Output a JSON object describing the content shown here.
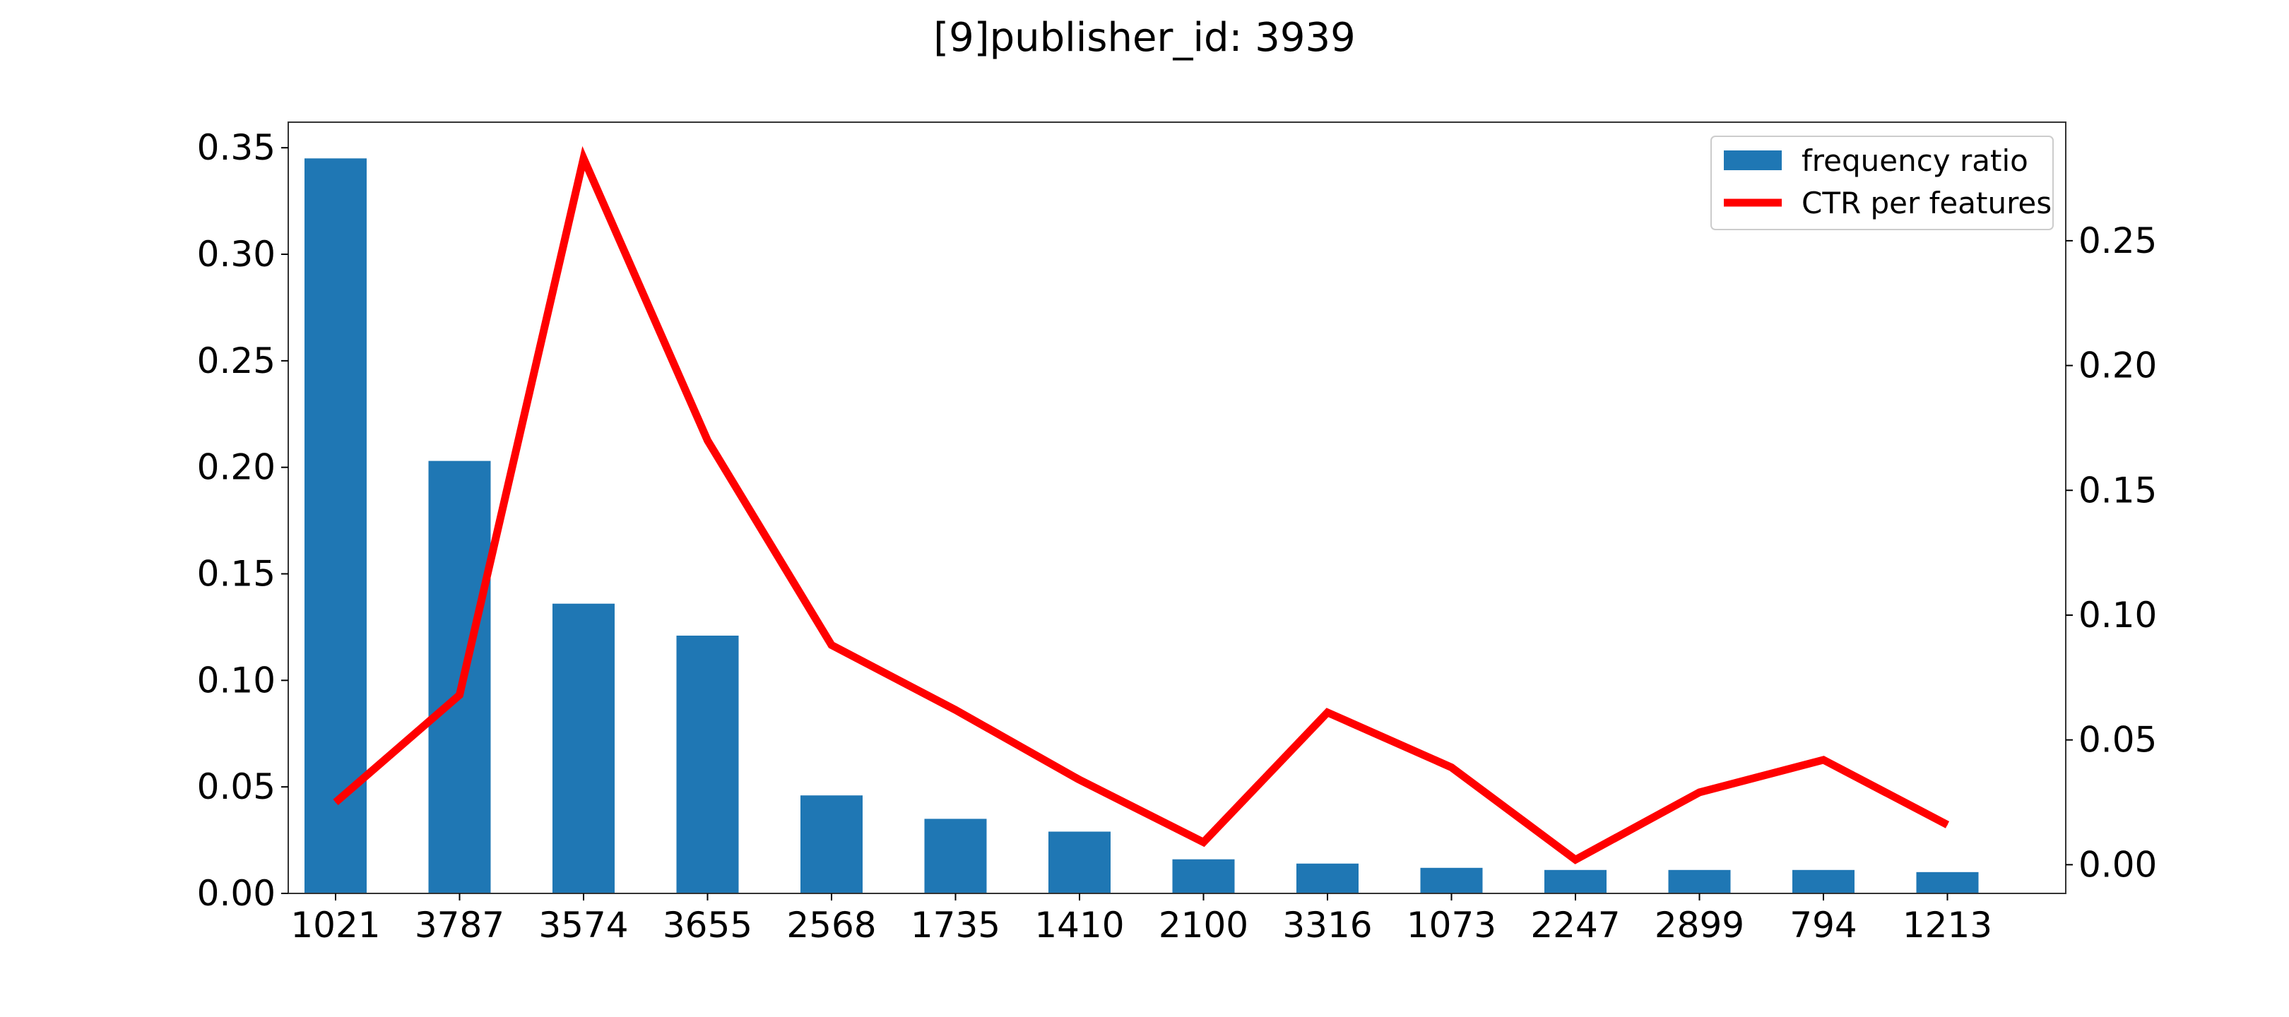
{
  "chart_data": {
    "type": "bar+line",
    "title": "[9]publisher_id: 3939",
    "categories": [
      "1021",
      "3787",
      "3574",
      "3655",
      "2568",
      "1735",
      "1410",
      "2100",
      "3316",
      "1073",
      "2247",
      "2899",
      "794",
      "1213"
    ],
    "series": [
      {
        "name": "frequency ratio",
        "type": "bar",
        "axis": "left",
        "color": "#1f77b4",
        "values": [
          0.345,
          0.203,
          0.136,
          0.121,
          0.046,
          0.035,
          0.029,
          0.016,
          0.014,
          0.012,
          0.011,
          0.011,
          0.011,
          0.01
        ]
      },
      {
        "name": "CTR per features",
        "type": "line",
        "axis": "right",
        "color": "#ff0000",
        "values": [
          0.025,
          0.068,
          0.283,
          0.17,
          0.088,
          0.062,
          0.034,
          0.009,
          0.061,
          0.039,
          0.002,
          0.029,
          0.042,
          0.016
        ]
      }
    ],
    "y_left": {
      "ylim": [
        0.0,
        0.362
      ],
      "ticks": [
        "0.00",
        "0.05",
        "0.10",
        "0.15",
        "0.20",
        "0.25",
        "0.30",
        "0.35"
      ]
    },
    "y_right": {
      "ylim": [
        -0.0115,
        0.2975
      ],
      "ticks": [
        "0.00",
        "0.05",
        "0.10",
        "0.15",
        "0.20",
        "0.25"
      ]
    },
    "xlabel": "",
    "ylabel": "",
    "grid": false,
    "legend": "top-right"
  }
}
